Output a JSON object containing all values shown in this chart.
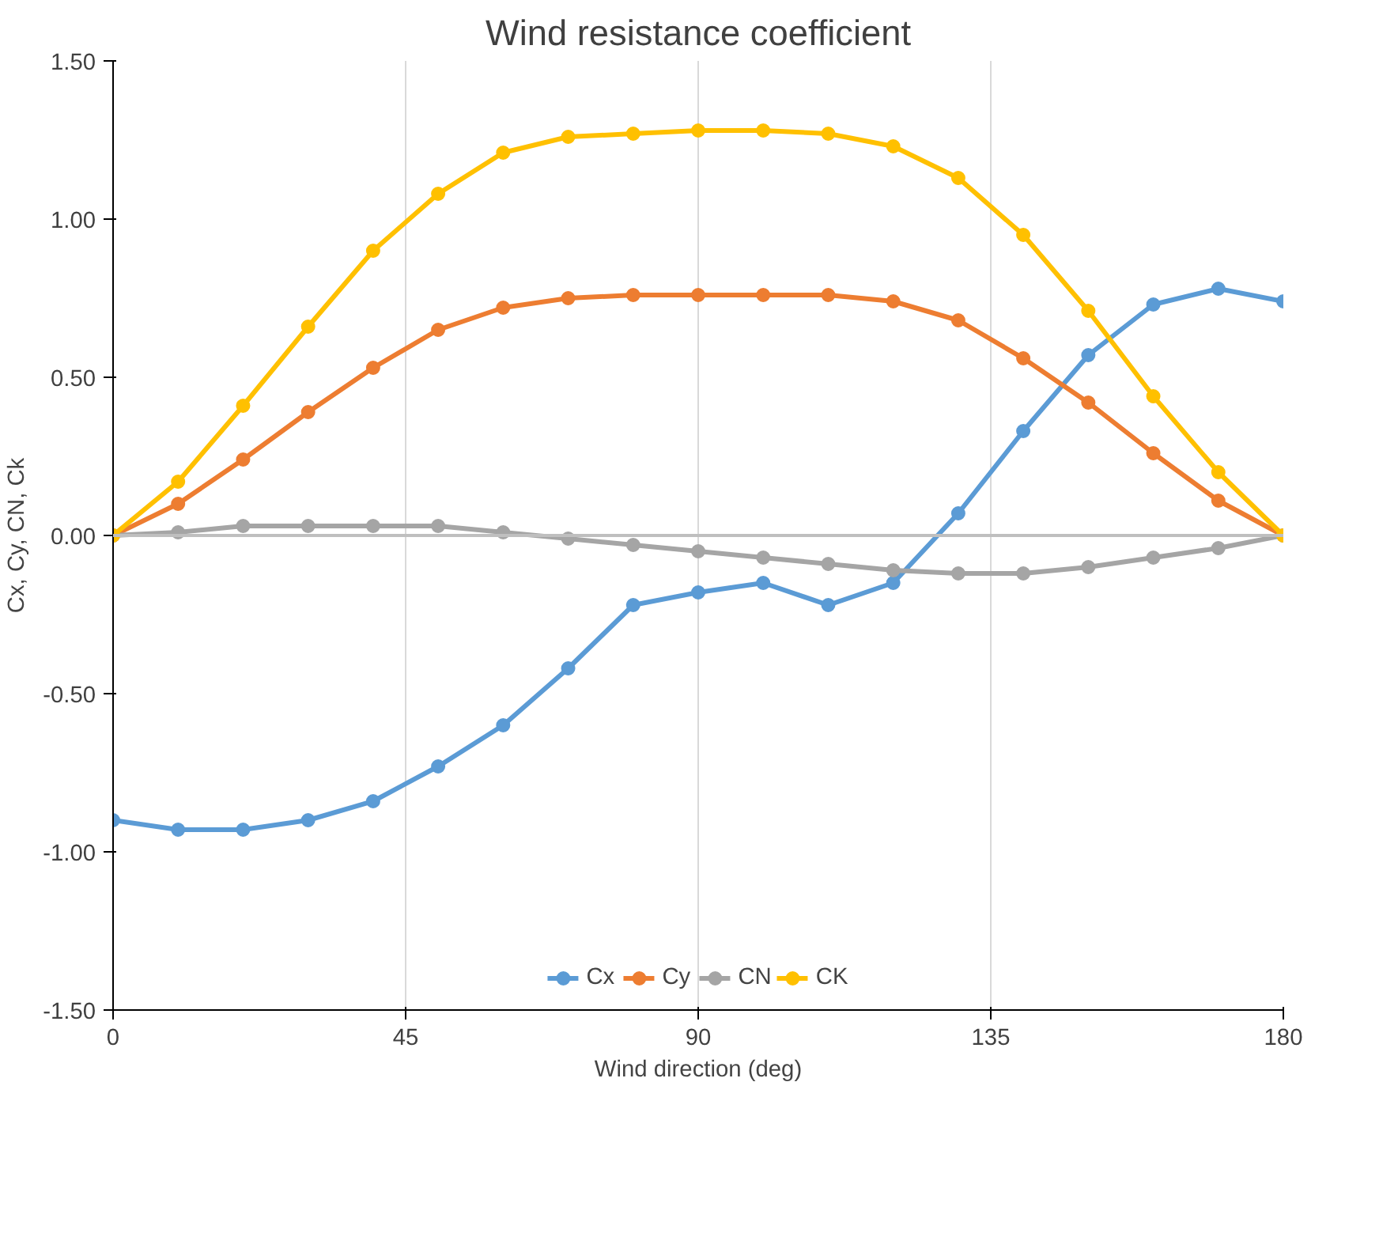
{
  "chart_data": {
    "type": "line",
    "title": "Wind resistance coefficient",
    "xlabel": "Wind direction (deg)",
    "ylabel": "Cx, Cy, CN, Ck",
    "x": [
      0,
      10,
      20,
      30,
      40,
      50,
      60,
      70,
      80,
      90,
      100,
      110,
      120,
      130,
      140,
      150,
      160,
      170,
      180
    ],
    "series": [
      {
        "name": "Cx",
        "color": "#5b9bd5",
        "values": [
          -0.9,
          -0.93,
          -0.93,
          -0.9,
          -0.84,
          -0.73,
          -0.6,
          -0.42,
          -0.22,
          -0.18,
          -0.15,
          -0.22,
          -0.15,
          0.07,
          0.33,
          0.57,
          0.73,
          0.78,
          0.74
        ]
      },
      {
        "name": "Cy",
        "color": "#ed7d31",
        "values": [
          0,
          0.1,
          0.24,
          0.39,
          0.53,
          0.65,
          0.72,
          0.75,
          0.76,
          0.76,
          0.76,
          0.76,
          0.74,
          0.68,
          0.56,
          0.42,
          0.26,
          0.11,
          0
        ]
      },
      {
        "name": "CN",
        "color": "#a5a5a5",
        "values": [
          0,
          0.01,
          0.03,
          0.03,
          0.03,
          0.03,
          0.01,
          -0.01,
          -0.03,
          -0.05,
          -0.07,
          -0.09,
          -0.11,
          -0.12,
          -0.12,
          -0.1,
          -0.07,
          -0.04,
          0
        ]
      },
      {
        "name": "CK",
        "color": "#ffc000",
        "values": [
          0,
          0.17,
          0.41,
          0.66,
          0.9,
          1.08,
          1.21,
          1.26,
          1.27,
          1.28,
          1.28,
          1.27,
          1.23,
          1.13,
          0.95,
          0.71,
          0.44,
          0.2,
          0
        ]
      }
    ],
    "xlim": [
      0,
      180
    ],
    "xticks": [
      0,
      45,
      90,
      135,
      180
    ],
    "ylim": [
      -1.5,
      1.5
    ],
    "yticks": [
      {
        "value": -1.5,
        "label": "-1.50"
      },
      {
        "value": -1.0,
        "label": "-1.00"
      },
      {
        "value": -0.5,
        "label": "-0.50"
      },
      {
        "value": 0,
        "label": "0.00"
      },
      {
        "value": 0.5,
        "label": "0.50"
      },
      {
        "value": 1.0,
        "label": "1.00"
      },
      {
        "value": 1.5,
        "label": "1.50"
      }
    ],
    "ref_lines": [
      {
        "axis": "y",
        "value": 0,
        "color": "#bfbfbf"
      }
    ],
    "grid": "x",
    "legend": "bottom",
    "marker": "circle",
    "line_style": "solid"
  }
}
